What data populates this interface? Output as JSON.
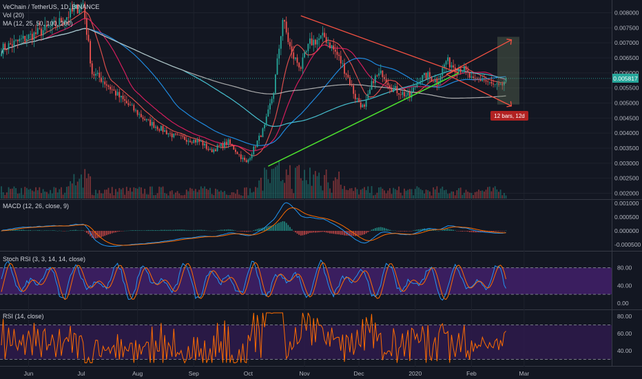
{
  "header": {
    "title": "VeChain / TetherUS, 1D, BINANCE",
    "volume_label": "Vol (20)",
    "ma_label": "MA (12, 25, 50, 100, 200)"
  },
  "panes": {
    "macd_label": "MACD (12, 26, close, 9)",
    "stoch_label": "Stoch RSI (3, 3, 14, 14, close)",
    "rsi_label": "RSI (14, close)"
  },
  "price_axis": {
    "ticks": [
      "0.008000",
      "0.007500",
      "0.007000",
      "0.006500",
      "0.006000",
      "0.005500",
      "0.005000",
      "0.004500",
      "0.004000",
      "0.003500",
      "0.003000",
      "0.002500",
      "0.002000"
    ],
    "current_price": "0.005817"
  },
  "macd_axis": {
    "ticks": [
      "0.001000",
      "0.000500",
      "0.000000",
      "-0.000500"
    ]
  },
  "stoch_axis": {
    "ticks": [
      "80.00",
      "40.00",
      "0.00"
    ]
  },
  "rsi_axis": {
    "ticks": [
      "80.00",
      "60.00",
      "40.00"
    ]
  },
  "time_axis": {
    "labels": [
      "Jun",
      "Jul",
      "Aug",
      "Sep",
      "Oct",
      "Nov",
      "Dec",
      "2020",
      "Feb",
      "Mar"
    ]
  },
  "projection": {
    "label": "12 bars, 12d"
  },
  "colors": {
    "background": "#131722",
    "up": "#26a69a",
    "down": "#ef5350",
    "ma12": "#ef5350",
    "ma25": "#e91e63",
    "ma50": "#2196f3",
    "ma100": "#4dd0e1",
    "ma200": "#bdbdbd",
    "resistance": "#f55142",
    "support": "#4cde2e",
    "stoch_band": "#3f1f66",
    "rsi_band": "#2c1a49",
    "macd_line": "#2196f3",
    "signal_line": "#ff6d00",
    "price_tag": "#26a69a"
  },
  "chart_data": {
    "type": "candlestick",
    "symbol": "VeChain / TetherUS",
    "interval": "1D",
    "exchange": "BINANCE",
    "y_range": [
      0.0019,
      0.0083
    ],
    "last_price": 0.005817,
    "series": [
      {
        "name": "price",
        "days": [
          0,
          15,
          30,
          45,
          50,
          55,
          65,
          80,
          95,
          110,
          115,
          125,
          135,
          145,
          150,
          155,
          160,
          165,
          170,
          178,
          185,
          190,
          195,
          200,
          205,
          210,
          215,
          225,
          230,
          235,
          240,
          245,
          250,
          255,
          260,
          265,
          270,
          275,
          278
        ],
        "close": [
          0.0068,
          0.0072,
          0.0076,
          0.0083,
          0.006,
          0.0058,
          0.0052,
          0.0044,
          0.0039,
          0.0037,
          0.0034,
          0.0037,
          0.003,
          0.0042,
          0.0054,
          0.0078,
          0.0066,
          0.0062,
          0.007,
          0.0072,
          0.0066,
          0.006,
          0.0052,
          0.0048,
          0.0058,
          0.006,
          0.0055,
          0.0052,
          0.0058,
          0.0059,
          0.0057,
          0.0064,
          0.0062,
          0.0061,
          0.0057,
          0.0058,
          0.0056,
          0.0055,
          0.00582
        ]
      },
      {
        "name": "resistance",
        "days": [
          165,
          252
        ],
        "values": [
          0.0079,
          0.006
        ]
      },
      {
        "name": "support",
        "days": [
          147,
          252
        ],
        "values": [
          0.0029,
          0.006
        ]
      }
    ],
    "macd": {
      "range": [
        -0.0006,
        0.0011
      ]
    },
    "stoch_rsi": {
      "range": [
        -2,
        105
      ],
      "bands": [
        20,
        80
      ]
    },
    "rsi": {
      "range": [
        25,
        87
      ],
      "bands": [
        30,
        70
      ]
    }
  }
}
